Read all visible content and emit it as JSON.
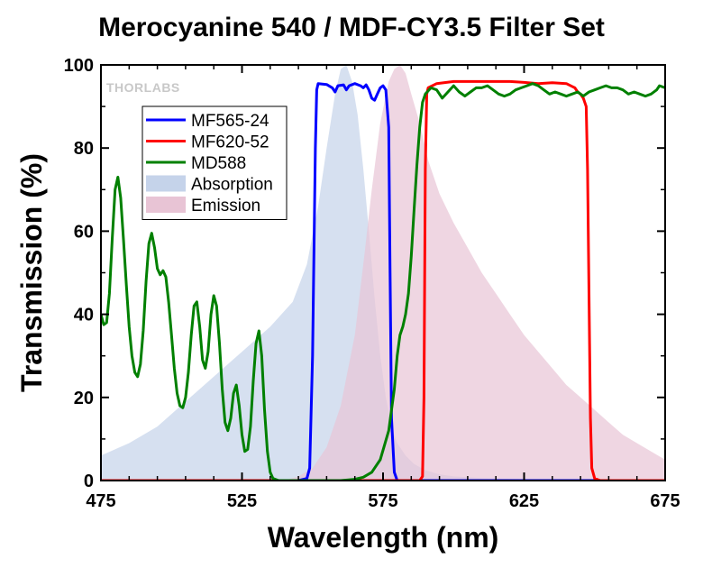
{
  "chart_data": {
    "type": "line",
    "title": "Merocyanine 540 / MDF-CY3.5 Filter Set",
    "xlabel": "Wavelength (nm)",
    "ylabel": "Transmission (%)",
    "xlim": [
      475,
      675
    ],
    "ylim": [
      0,
      100
    ],
    "x_ticks": [
      475,
      525,
      575,
      625,
      675
    ],
    "y_ticks": [
      0,
      20,
      40,
      60,
      80,
      100
    ],
    "grid": false,
    "legend_position": "top-left",
    "watermark": "THORLABS",
    "series": [
      {
        "name": "MF565-24",
        "kind": "line",
        "color": "#0000ff",
        "points": [
          [
            475,
            0
          ],
          [
            545,
            0
          ],
          [
            548,
            0.5
          ],
          [
            549,
            3
          ],
          [
            550,
            30
          ],
          [
            551,
            80
          ],
          [
            551.5,
            94
          ],
          [
            552,
            95.5
          ],
          [
            555,
            95.3
          ],
          [
            557,
            94.5
          ],
          [
            558,
            93.5
          ],
          [
            559,
            95
          ],
          [
            561,
            95.2
          ],
          [
            562,
            94
          ],
          [
            563,
            95
          ],
          [
            565,
            95.5
          ],
          [
            567,
            95
          ],
          [
            568,
            94.5
          ],
          [
            569,
            95.2
          ],
          [
            570,
            94
          ],
          [
            571,
            92
          ],
          [
            572,
            91.5
          ],
          [
            573,
            93
          ],
          [
            574,
            94.5
          ],
          [
            575,
            95
          ],
          [
            576,
            94
          ],
          [
            577,
            85
          ],
          [
            577.5,
            50
          ],
          [
            578,
            15
          ],
          [
            579,
            2
          ],
          [
            580,
            0
          ],
          [
            675,
            0
          ]
        ]
      },
      {
        "name": "MF620-52",
        "kind": "line",
        "color": "#ff0000",
        "points": [
          [
            475,
            0
          ],
          [
            588,
            0
          ],
          [
            589,
            1
          ],
          [
            589.5,
            20
          ],
          [
            590,
            75
          ],
          [
            590.5,
            93
          ],
          [
            591,
            94.5
          ],
          [
            594,
            95.5
          ],
          [
            600,
            96
          ],
          [
            620,
            96
          ],
          [
            625,
            95.8
          ],
          [
            630,
            95.5
          ],
          [
            635,
            95.7
          ],
          [
            640,
            95.5
          ],
          [
            643,
            94.5
          ],
          [
            644,
            93.5
          ],
          [
            645,
            93
          ],
          [
            646,
            92
          ],
          [
            647,
            90
          ],
          [
            647.5,
            75
          ],
          [
            648,
            45
          ],
          [
            648.5,
            15
          ],
          [
            649,
            3
          ],
          [
            650,
            0.5
          ],
          [
            652,
            0
          ],
          [
            675,
            0
          ]
        ]
      },
      {
        "name": "MD588",
        "kind": "line",
        "color": "#008000",
        "points": [
          [
            475,
            40
          ],
          [
            476,
            37.5
          ],
          [
            477,
            38
          ],
          [
            478,
            45
          ],
          [
            479,
            58
          ],
          [
            480,
            70
          ],
          [
            481,
            73
          ],
          [
            482,
            68
          ],
          [
            483,
            58
          ],
          [
            484,
            47
          ],
          [
            485,
            37
          ],
          [
            486,
            30
          ],
          [
            487,
            26
          ],
          [
            488,
            25
          ],
          [
            489,
            28
          ],
          [
            490,
            36
          ],
          [
            491,
            48
          ],
          [
            492,
            57
          ],
          [
            493,
            59.5
          ],
          [
            494,
            56
          ],
          [
            495,
            51
          ],
          [
            496,
            49.5
          ],
          [
            497,
            50.5
          ],
          [
            498,
            49
          ],
          [
            499,
            43
          ],
          [
            500,
            35
          ],
          [
            501,
            27
          ],
          [
            502,
            21
          ],
          [
            503,
            18
          ],
          [
            504,
            17.5
          ],
          [
            505,
            20
          ],
          [
            506,
            26
          ],
          [
            507,
            35
          ],
          [
            508,
            42
          ],
          [
            509,
            43
          ],
          [
            510,
            37
          ],
          [
            511,
            29
          ],
          [
            512,
            27
          ],
          [
            513,
            31
          ],
          [
            514,
            40
          ],
          [
            515,
            44.5
          ],
          [
            516,
            42
          ],
          [
            517,
            33
          ],
          [
            518,
            22
          ],
          [
            519,
            14
          ],
          [
            520,
            12
          ],
          [
            521,
            15
          ],
          [
            522,
            21
          ],
          [
            523,
            23
          ],
          [
            524,
            18
          ],
          [
            525,
            11
          ],
          [
            526,
            7
          ],
          [
            527,
            7.5
          ],
          [
            528,
            13
          ],
          [
            529,
            24
          ],
          [
            530,
            33
          ],
          [
            531,
            36
          ],
          [
            532,
            30
          ],
          [
            533,
            17
          ],
          [
            534,
            7
          ],
          [
            535,
            2
          ],
          [
            536,
            0.5
          ],
          [
            538,
            0
          ],
          [
            560,
            0
          ],
          [
            565,
            0.3
          ],
          [
            568,
            0.8
          ],
          [
            571,
            2
          ],
          [
            574,
            5
          ],
          [
            577,
            12
          ],
          [
            579,
            22
          ],
          [
            580,
            30
          ],
          [
            581,
            35
          ],
          [
            582,
            37
          ],
          [
            583,
            40
          ],
          [
            584,
            45
          ],
          [
            585,
            54
          ],
          [
            586,
            65
          ],
          [
            587,
            76
          ],
          [
            588,
            85
          ],
          [
            589,
            91
          ],
          [
            590,
            93
          ],
          [
            592,
            94.5
          ],
          [
            594,
            94
          ],
          [
            596,
            92
          ],
          [
            598,
            93.5
          ],
          [
            600,
            95
          ],
          [
            602,
            93.5
          ],
          [
            604,
            92.5
          ],
          [
            606,
            93.5
          ],
          [
            608,
            94.5
          ],
          [
            610,
            94.5
          ],
          [
            612,
            95
          ],
          [
            614,
            94
          ],
          [
            616,
            93
          ],
          [
            618,
            92.5
          ],
          [
            620,
            93
          ],
          [
            622,
            94
          ],
          [
            624,
            94.5
          ],
          [
            626,
            95
          ],
          [
            628,
            95.5
          ],
          [
            630,
            95
          ],
          [
            632,
            94
          ],
          [
            634,
            93
          ],
          [
            636,
            93.5
          ],
          [
            638,
            93
          ],
          [
            640,
            92.5
          ],
          [
            642,
            93
          ],
          [
            644,
            93.5
          ],
          [
            646,
            92.5
          ],
          [
            648,
            93.5
          ],
          [
            650,
            94
          ],
          [
            652,
            94.5
          ],
          [
            654,
            95
          ],
          [
            656,
            94.5
          ],
          [
            658,
            94.5
          ],
          [
            660,
            94
          ],
          [
            662,
            93
          ],
          [
            664,
            93.5
          ],
          [
            666,
            93
          ],
          [
            668,
            92.5
          ],
          [
            670,
            93
          ],
          [
            672,
            94
          ],
          [
            673,
            95
          ],
          [
            675,
            94.5
          ]
        ]
      },
      {
        "name": "Absorption",
        "kind": "area",
        "color": "#c5d3ea",
        "points": [
          [
            475,
            6
          ],
          [
            485,
            9
          ],
          [
            495,
            13
          ],
          [
            505,
            19
          ],
          [
            515,
            25
          ],
          [
            525,
            31
          ],
          [
            535,
            37
          ],
          [
            543,
            43
          ],
          [
            548,
            52
          ],
          [
            552,
            66
          ],
          [
            555,
            80
          ],
          [
            558,
            93
          ],
          [
            560,
            99
          ],
          [
            562,
            100
          ],
          [
            564,
            96
          ],
          [
            566,
            88
          ],
          [
            568,
            75
          ],
          [
            570,
            60
          ],
          [
            572,
            44
          ],
          [
            574,
            30
          ],
          [
            576,
            20
          ],
          [
            578,
            13
          ],
          [
            580,
            9
          ],
          [
            583,
            6
          ],
          [
            586,
            4
          ],
          [
            590,
            2.5
          ],
          [
            595,
            1.5
          ],
          [
            600,
            1
          ],
          [
            610,
            0.6
          ],
          [
            625,
            0.3
          ],
          [
            645,
            0.1
          ],
          [
            675,
            0
          ]
        ]
      },
      {
        "name": "Emission",
        "kind": "area",
        "color": "#e8c4d5",
        "points": [
          [
            540,
            0
          ],
          [
            545,
            1
          ],
          [
            550,
            3
          ],
          [
            555,
            8
          ],
          [
            560,
            18
          ],
          [
            565,
            35
          ],
          [
            568,
            52
          ],
          [
            571,
            70
          ],
          [
            574,
            86
          ],
          [
            577,
            96
          ],
          [
            579,
            99
          ],
          [
            581,
            100
          ],
          [
            583,
            98
          ],
          [
            585,
            93
          ],
          [
            588,
            86
          ],
          [
            591,
            77
          ],
          [
            595,
            69
          ],
          [
            600,
            62
          ],
          [
            605,
            56
          ],
          [
            610,
            50
          ],
          [
            615,
            45
          ],
          [
            620,
            40
          ],
          [
            625,
            35
          ],
          [
            630,
            31
          ],
          [
            635,
            27
          ],
          [
            640,
            23
          ],
          [
            645,
            20
          ],
          [
            650,
            17
          ],
          [
            655,
            14
          ],
          [
            660,
            11
          ],
          [
            665,
            9
          ],
          [
            670,
            7
          ],
          [
            675,
            5
          ]
        ]
      }
    ]
  }
}
